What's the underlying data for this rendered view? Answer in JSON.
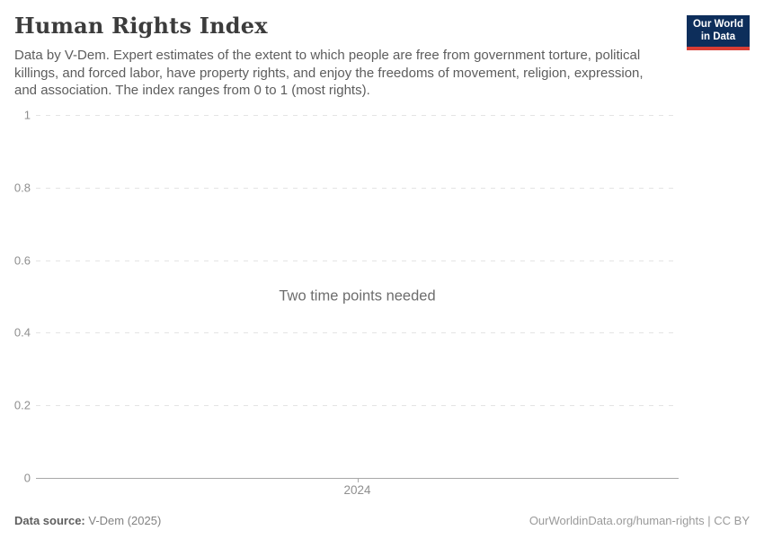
{
  "header": {
    "title": "Human Rights Index",
    "subtitle": "Data by V-Dem. Expert estimates of the extent to which people are free from government torture, political killings, and forced labor, have property rights, and enjoy the freedoms of movement, religion, expression, and association. The index ranges from 0 to 1 (most rights).",
    "logo": {
      "line1": "Our World",
      "line2": "in Data",
      "background_color": "#0d2e5b",
      "accent_color": "#d93d34"
    }
  },
  "chart_data": {
    "type": "line",
    "title": "Human Rights Index",
    "series": [],
    "empty_message": "Two time points needed",
    "x_ticks": [
      "2024"
    ],
    "y_ticks": [
      "0",
      "0.2",
      "0.4",
      "0.6",
      "0.8",
      "1"
    ],
    "ylim": [
      0,
      1
    ],
    "grid": true,
    "gridline_color": "#e4e4e4",
    "axis_color": "#a8a8a8",
    "tick_label_color": "#8f8f8f"
  },
  "footer": {
    "source_label": "Data source:",
    "source_value": "V-Dem (2025)",
    "credit_link": "OurWorldinData.org/human-rights",
    "credit_separator": " | ",
    "credit_license": "CC BY"
  }
}
